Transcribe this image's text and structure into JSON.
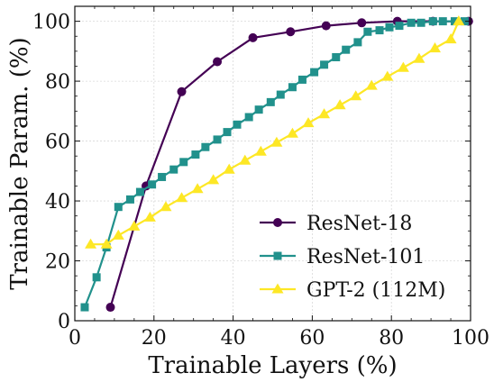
{
  "chart_data": {
    "type": "line",
    "xlabel": "Trainable Layers (%)",
    "ylabel": "Trainable Param. (%)",
    "xlim": [
      0,
      100
    ],
    "ylim": [
      0,
      105
    ],
    "xticks": [
      0,
      20,
      40,
      60,
      80,
      100
    ],
    "yticks": [
      0,
      20,
      40,
      60,
      80,
      100
    ],
    "grid": true,
    "legend_position": "lower-right",
    "series": [
      {
        "name": "ResNet-18",
        "color": "#440154",
        "marker": "circle",
        "points": [
          [
            9,
            4.5
          ],
          [
            18,
            45
          ],
          [
            27,
            76.5
          ],
          [
            36,
            86.5
          ],
          [
            45,
            94.5
          ],
          [
            54.5,
            96.5
          ],
          [
            63.5,
            98.5
          ],
          [
            72.5,
            99.5
          ],
          [
            81.5,
            100
          ],
          [
            90.5,
            100
          ],
          [
            99.5,
            100
          ]
        ]
      },
      {
        "name": "ResNet-101",
        "color": "#21918c",
        "marker": "square",
        "points": [
          [
            2.5,
            4.5
          ],
          [
            5.5,
            14.5
          ],
          [
            8,
            24.5
          ],
          [
            11,
            38
          ],
          [
            14,
            40.5
          ],
          [
            16.5,
            43
          ],
          [
            19.5,
            45.5
          ],
          [
            22,
            48
          ],
          [
            25,
            50.5
          ],
          [
            27.5,
            53
          ],
          [
            30.5,
            55.5
          ],
          [
            33,
            58
          ],
          [
            36,
            60.5
          ],
          [
            38.5,
            63
          ],
          [
            41,
            65.5
          ],
          [
            44,
            68
          ],
          [
            46.5,
            70.5
          ],
          [
            49.5,
            73
          ],
          [
            52,
            75.5
          ],
          [
            55,
            78
          ],
          [
            57.5,
            80.5
          ],
          [
            60.5,
            83
          ],
          [
            63,
            85.5
          ],
          [
            66,
            88
          ],
          [
            68.5,
            90.5
          ],
          [
            71.5,
            93
          ],
          [
            74,
            96.5
          ],
          [
            77,
            97
          ],
          [
            79.5,
            98
          ],
          [
            82,
            98.5
          ],
          [
            85,
            99.5
          ],
          [
            87.5,
            99.5
          ],
          [
            90.5,
            100
          ],
          [
            93,
            100
          ],
          [
            96,
            100
          ],
          [
            98.5,
            100
          ]
        ]
      },
      {
        "name": "GPT-2 (112M)",
        "color": "#fde725",
        "marker": "triangle",
        "points": [
          [
            4,
            25.5
          ],
          [
            8,
            25.5
          ],
          [
            11,
            28.5
          ],
          [
            15,
            31.5
          ],
          [
            19,
            34.5
          ],
          [
            23,
            38
          ],
          [
            27,
            41
          ],
          [
            31,
            44
          ],
          [
            35,
            47
          ],
          [
            39,
            50.5
          ],
          [
            43,
            53.5
          ],
          [
            47,
            56.5
          ],
          [
            51,
            59.5
          ],
          [
            55,
            62.5
          ],
          [
            59,
            66
          ],
          [
            63,
            69
          ],
          [
            67,
            72
          ],
          [
            71,
            75
          ],
          [
            75,
            78.5
          ],
          [
            79,
            81.5
          ],
          [
            83,
            84.5
          ],
          [
            87,
            87.5
          ],
          [
            91,
            91
          ],
          [
            95,
            94
          ],
          [
            97,
            100
          ]
        ]
      }
    ]
  }
}
